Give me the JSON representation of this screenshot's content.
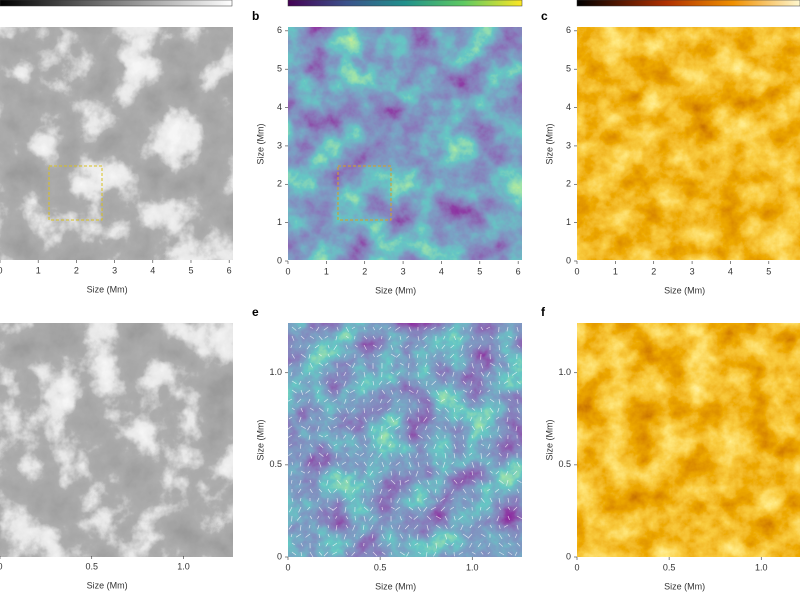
{
  "panels": [
    {
      "xlim": [
        0,
        6.1
      ],
      "ylim": [
        0,
        6.1
      ],
      "x_label": "Size (Mm)",
      "xticks": [
        0,
        1,
        2,
        3,
        4,
        5,
        6
      ],
      "yticks": []
    },
    {
      "label": "b",
      "xlim": [
        0,
        6.1
      ],
      "ylim": [
        0,
        6.1
      ],
      "x_label": "Size (Mm)",
      "y_label": "Size (Mm)",
      "xticks": [
        0,
        1,
        2,
        3,
        4,
        5,
        6
      ],
      "yticks": [
        0,
        1,
        2,
        3,
        4,
        5,
        6
      ]
    },
    {
      "label": "c",
      "xlim": [
        0,
        6.1
      ],
      "ylim": [
        0,
        6.1
      ],
      "x_label": "Size (Mm)",
      "y_label": "Size (Mm)",
      "xticks": [
        0,
        1,
        2,
        3,
        4,
        5
      ],
      "yticks": [
        0,
        1,
        2,
        3,
        4,
        5,
        6
      ]
    },
    {
      "xlim": [
        0,
        1.27
      ],
      "ylim": [
        0,
        1.27
      ],
      "x_label": "Size (Mm)",
      "xticks": [
        0,
        0.5,
        {
          "value": 1,
          "label": "1.0"
        }
      ],
      "yticks": []
    },
    {
      "label": "e",
      "xlim": [
        0,
        1.27
      ],
      "ylim": [
        0,
        1.27
      ],
      "x_label": "Size (Mm)",
      "y_label": "Size (Mm)",
      "xticks": [
        0,
        0.5,
        {
          "value": 1,
          "label": "1.0"
        }
      ],
      "yticks": [
        0,
        0.5,
        {
          "value": 1,
          "label": "1.0"
        }
      ]
    },
    {
      "label": "f",
      "xlim": [
        0,
        1.27
      ],
      "ylim": [
        0,
        1.27
      ],
      "x_label": "Size (Mm)",
      "y_label": "Size (Mm)",
      "xticks": [
        0,
        0.5,
        {
          "value": 1,
          "label": "1.0"
        }
      ],
      "yticks": [
        0,
        0.5,
        {
          "value": 1,
          "label": "1.0"
        }
      ]
    }
  ]
}
